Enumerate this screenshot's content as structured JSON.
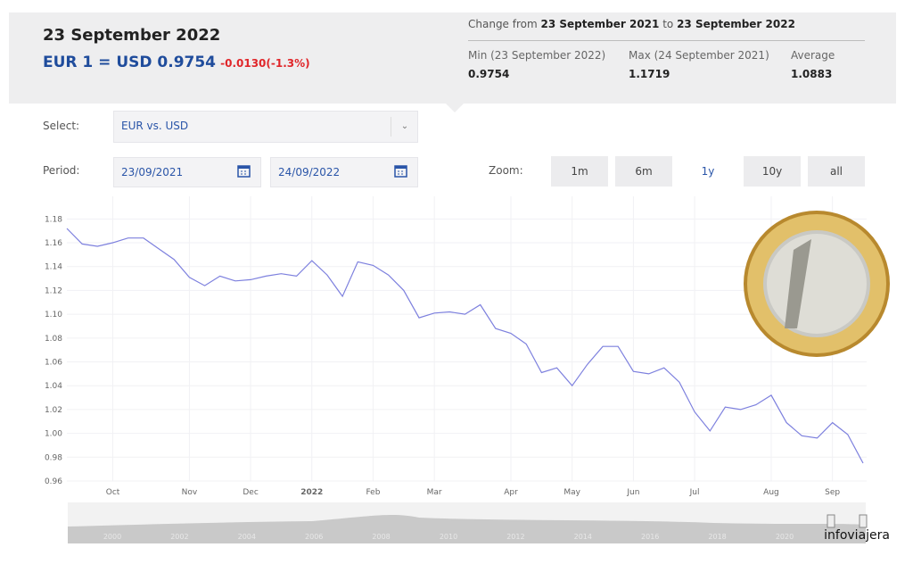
{
  "header": {
    "date": "23 September 2022",
    "rate": "EUR 1 = USD 0.9754",
    "change": "-0.0130(-1.3%)"
  },
  "summary": {
    "prefix": "Change from",
    "from": "23 September 2021",
    "to_word": "to",
    "to": "23 September 2022",
    "stats": [
      {
        "label": "Min (23 September 2022)",
        "value": "0.9754"
      },
      {
        "label": "Max (24 September 2021)",
        "value": "1.1719"
      },
      {
        "label": "Average",
        "value": "1.0883"
      }
    ]
  },
  "controls": {
    "select_label": "Select:",
    "select_value": "EUR vs. USD",
    "period_label": "Period:",
    "period_from": "23/09/2021",
    "period_to": "24/09/2022",
    "zoom_label": "Zoom:",
    "zoom_options": [
      "1m",
      "6m",
      "1y",
      "10y",
      "all"
    ],
    "zoom_selected": "1y"
  },
  "chart_data": {
    "type": "line",
    "color": "#7d80de",
    "categories": [
      null,
      null,
      null,
      "Oct",
      null,
      null,
      null,
      null,
      "Nov",
      null,
      null,
      null,
      "Dec",
      null,
      null,
      null,
      "2022",
      null,
      null,
      null,
      "Feb",
      null,
      null,
      null,
      "Mar",
      null,
      null,
      null,
      null,
      "Apr",
      null,
      null,
      null,
      "May",
      null,
      null,
      null,
      "Jun",
      null,
      null,
      null,
      "Jul",
      null,
      null,
      null,
      null,
      "Aug",
      null,
      null,
      null,
      "Sep",
      null,
      null
    ],
    "values": [
      1.172,
      1.159,
      1.157,
      1.16,
      1.164,
      1.164,
      1.155,
      1.146,
      1.131,
      1.124,
      1.132,
      1.128,
      1.129,
      1.132,
      1.134,
      1.132,
      1.145,
      1.133,
      1.115,
      1.144,
      1.141,
      1.133,
      1.12,
      1.097,
      1.101,
      1.102,
      1.1,
      1.108,
      1.088,
      1.084,
      1.075,
      1.051,
      1.055,
      1.04,
      1.058,
      1.073,
      1.073,
      1.052,
      1.05,
      1.055,
      1.043,
      1.018,
      1.002,
      1.022,
      1.02,
      1.024,
      1.032,
      1.009,
      0.998,
      0.996,
      1.009,
      0.999,
      0.975
    ],
    "ylim": [
      0.96,
      1.19
    ],
    "yticks": [
      0.96,
      0.98,
      {
        "value": 1,
        "label": "1.00"
      },
      1.02,
      1.04,
      1.06,
      1.08,
      {
        "value": 1.1,
        "label": "1.10"
      },
      1.12,
      1.14,
      1.16,
      1.18
    ],
    "grid": true
  },
  "navigator": {
    "years": [
      "2000",
      "2002",
      "2004",
      "2006",
      "2008",
      "2010",
      "2012",
      "2014",
      "2016",
      "2018",
      "2020"
    ]
  },
  "watermark": "infoviajera"
}
